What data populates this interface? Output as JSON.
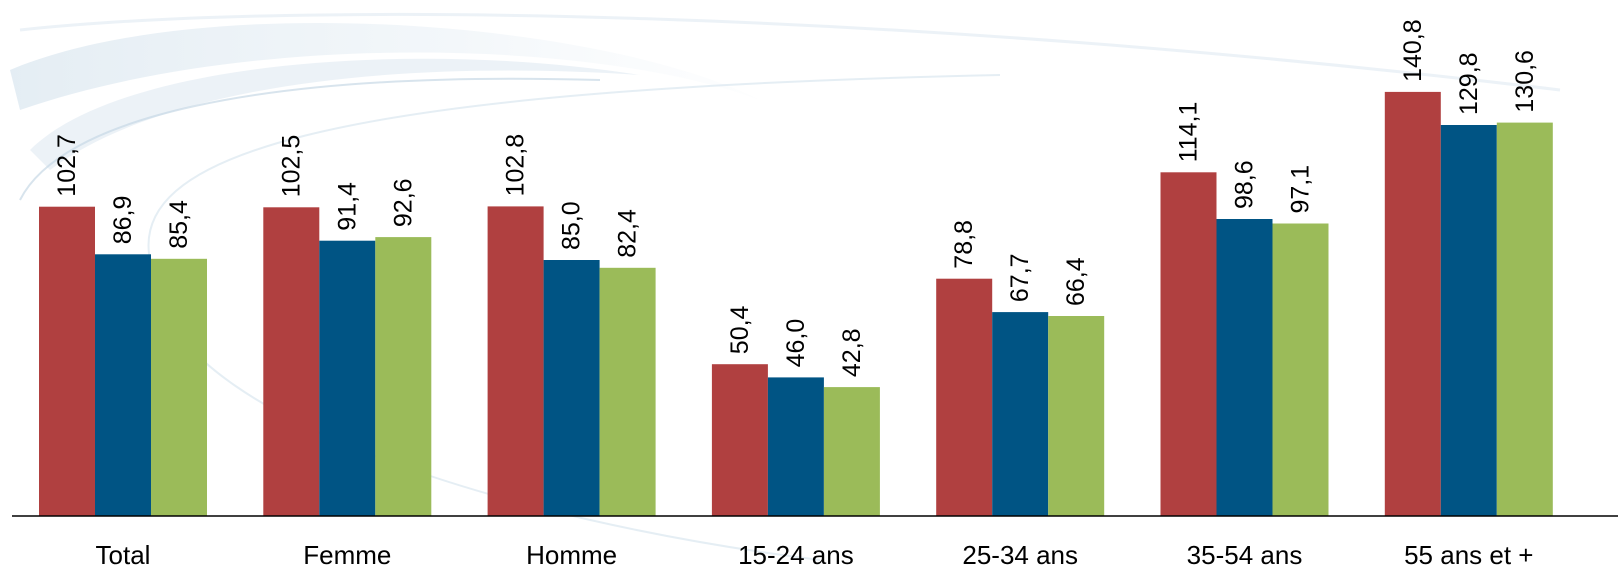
{
  "chart_data": {
    "type": "bar",
    "categories": [
      "Total",
      "Femme",
      "Homme",
      "15-24 ans",
      "25-34 ans",
      "35-54 ans",
      "55 ans et +"
    ],
    "series": [
      {
        "color": "#b04040",
        "values": [
          102.7,
          102.5,
          102.8,
          50.4,
          78.8,
          114.1,
          140.8
        ],
        "labels": [
          "102,7",
          "102,5",
          "102,8",
          "50,4",
          "78,8",
          "114,1",
          "140,8"
        ]
      },
      {
        "color": "#005484",
        "values": [
          86.9,
          91.4,
          85.0,
          46.0,
          67.7,
          98.6,
          129.8
        ],
        "labels": [
          "86,9",
          "91,4",
          "85,0",
          "46,0",
          "67,7",
          "98,6",
          "129,8"
        ]
      },
      {
        "color": "#9bbb59",
        "values": [
          85.4,
          92.6,
          82.4,
          42.8,
          66.4,
          97.1,
          130.6
        ],
        "labels": [
          "85,4",
          "92,6",
          "82,4",
          "42,8",
          "66,4",
          "97,1",
          "130,6"
        ]
      }
    ],
    "title": "",
    "xlabel": "",
    "ylabel": "",
    "ylim": [
      0,
      160
    ],
    "grid": false,
    "legend": "none"
  }
}
